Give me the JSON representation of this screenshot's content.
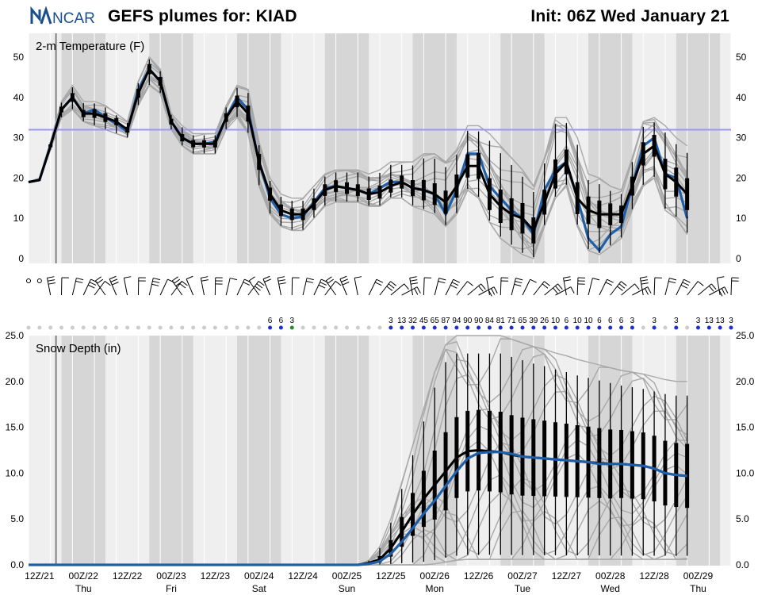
{
  "header": {
    "logo_text": "NCAR",
    "title": "GEFS plumes for: KIAD",
    "init": "Init: 06Z Wed January 21"
  },
  "colors": {
    "mean_line": "#1f5fa8",
    "median": "#000000",
    "members": "#a8a8a8",
    "freezing_line": "#9999ee",
    "shade_dark": "#d6d6d6",
    "shade_light": "#efefef",
    "prob_blue": "#1f2fd0",
    "prob_green": "#2a8a2a",
    "prob_gray": "#cccccc"
  },
  "chart_data": [
    {
      "type": "line",
      "title": "2-m Temperature (F)",
      "ylim": [
        0,
        50
      ],
      "yticks": [
        "0",
        "10",
        "20",
        "30",
        "40",
        "50"
      ],
      "freezing_line": 32,
      "x_tick_labels": [
        {
          "top": "12Z/21",
          "bottom": ""
        },
        {
          "top": "00Z/22",
          "bottom": "Thu"
        },
        {
          "top": "12Z/22",
          "bottom": ""
        },
        {
          "top": "00Z/23",
          "bottom": "Fri"
        },
        {
          "top": "12Z/23",
          "bottom": ""
        },
        {
          "top": "00Z/24",
          "bottom": "Sat"
        },
        {
          "top": "12Z/24",
          "bottom": ""
        },
        {
          "top": "00Z/25",
          "bottom": "Sun"
        },
        {
          "top": "12Z/25",
          "bottom": ""
        },
        {
          "top": "00Z/26",
          "bottom": "Mon"
        },
        {
          "top": "12Z/26",
          "bottom": ""
        },
        {
          "top": "00Z/27",
          "bottom": "Tue"
        },
        {
          "top": "12Z/27",
          "bottom": ""
        },
        {
          "top": "00Z/28",
          "bottom": "Wed"
        },
        {
          "top": "12Z/28",
          "bottom": ""
        },
        {
          "top": "00Z/29",
          "bottom": "Thu"
        }
      ],
      "series": [
        {
          "name": "ensemble mean",
          "values": [
            19,
            19.5,
            28,
            37,
            40,
            36,
            37,
            35,
            33.5,
            31.5,
            42,
            47,
            44,
            34,
            30,
            28.5,
            28.5,
            29,
            35,
            40,
            37,
            24,
            15,
            11,
            10,
            10.5,
            14,
            17.5,
            18,
            17.5,
            17,
            16,
            17.5,
            19,
            19,
            17.5,
            17,
            16,
            11,
            17,
            26,
            26,
            18,
            15,
            12,
            10,
            6,
            17,
            22,
            24,
            15,
            5,
            2,
            6,
            8,
            18,
            28,
            30,
            21,
            20,
            10
          ]
        },
        {
          "name": "median",
          "values": [
            19,
            19.5,
            28,
            37,
            40,
            36,
            36,
            35,
            34,
            32,
            41,
            47,
            44,
            34,
            30,
            28.5,
            28.5,
            28.5,
            35,
            39,
            36,
            24,
            16,
            12,
            11,
            11,
            13.5,
            17,
            18,
            17.5,
            17,
            16,
            16.5,
            18,
            19,
            17.5,
            17,
            16,
            14,
            18,
            23,
            23,
            16,
            13,
            11,
            10,
            7,
            14,
            21,
            24,
            15,
            12,
            11,
            11,
            11,
            18,
            26,
            28,
            21,
            19,
            16
          ]
        },
        {
          "name": "member low envelope",
          "values": [
            19,
            19.5,
            27,
            35,
            37,
            34,
            33,
            32,
            31,
            30,
            38,
            43,
            41,
            32,
            28,
            26,
            26,
            26,
            32,
            35,
            31,
            18,
            11,
            8,
            7,
            7,
            10,
            13,
            14,
            14,
            14,
            13,
            13,
            15,
            15,
            13,
            12,
            11,
            8,
            11,
            17,
            15,
            9,
            5,
            3,
            1,
            0,
            8,
            15,
            18,
            8,
            2,
            1,
            3,
            5,
            12,
            18,
            20,
            12,
            10,
            6
          ]
        },
        {
          "name": "member high envelope",
          "values": [
            19,
            20,
            29,
            39,
            43,
            39,
            39,
            38,
            36,
            34,
            44,
            50,
            47,
            36,
            33,
            31,
            31,
            31,
            38,
            43,
            42,
            29,
            20,
            16,
            15,
            15,
            18,
            21,
            22,
            22,
            22,
            21,
            22,
            24,
            24,
            24,
            26,
            26,
            24,
            27,
            33,
            33,
            31,
            28,
            25,
            22,
            18,
            25,
            35,
            35,
            30,
            21,
            20,
            18,
            17,
            25,
            34,
            35,
            33,
            30,
            28
          ]
        }
      ],
      "wind_barbs": "plotted per 6-h step between panels"
    },
    {
      "type": "line",
      "title": "Snow Depth (in)",
      "ylim": [
        0,
        25
      ],
      "yticks": [
        "0.0",
        "5.0",
        "10.0",
        "15.0",
        "20.0",
        "25.0"
      ],
      "x_tick_labels": "same as temperature panel",
      "series": [
        {
          "name": "ensemble mean",
          "values": [
            0,
            0,
            0,
            0,
            0,
            0,
            0,
            0,
            0,
            0,
            0,
            0,
            0,
            0,
            0,
            0,
            0,
            0,
            0,
            0,
            0,
            0,
            0,
            0,
            0,
            0,
            0,
            0,
            0,
            0,
            0,
            0.1,
            0.4,
            1.2,
            2.5,
            4,
            5.6,
            7,
            8.6,
            10.2,
            11.6,
            12.2,
            12.3,
            12.3,
            12.1,
            11.8,
            11.7,
            11.6,
            11.5,
            11.4,
            11.3,
            11.2,
            11,
            11,
            11,
            10.9,
            10.8,
            10.5,
            10,
            9.8,
            9.7
          ]
        },
        {
          "name": "median",
          "values": [
            0,
            0,
            0,
            0,
            0,
            0,
            0,
            0,
            0,
            0,
            0,
            0,
            0,
            0,
            0,
            0,
            0,
            0,
            0,
            0,
            0,
            0,
            0,
            0,
            0,
            0,
            0,
            0,
            0,
            0,
            0,
            0.2,
            0.6,
            1.8,
            3.6,
            5.5,
            7.2,
            8.7,
            10.2,
            11.7,
            12.4,
            12.5,
            12.4,
            12.3,
            12,
            11.8,
            11.7,
            11.6,
            11.5,
            11.4,
            11.3,
            11.2,
            11.1,
            11,
            11,
            10.9,
            10.8,
            10.5,
            10,
            9.8,
            9.7
          ]
        },
        {
          "name": "member high envelope",
          "values": [
            0,
            0,
            0,
            0,
            0,
            0,
            0,
            0,
            0,
            0,
            0,
            0,
            0,
            0,
            0,
            0,
            0,
            0,
            0,
            0,
            0,
            0,
            0,
            0,
            0,
            0,
            0,
            0,
            0,
            0,
            0,
            0.5,
            2,
            5,
            9,
            13,
            17,
            21,
            24,
            25,
            25,
            25,
            25,
            25,
            24.6,
            24.2,
            23.8,
            23.5,
            23.1,
            22.8,
            22.4,
            22.1,
            21.8,
            21.5,
            21.2,
            21,
            20.8,
            20.5,
            20.2,
            20,
            20
          ]
        },
        {
          "name": "member low envelope",
          "values": [
            0,
            0,
            0,
            0,
            0,
            0,
            0,
            0,
            0,
            0,
            0,
            0,
            0,
            0,
            0,
            0,
            0,
            0,
            0,
            0,
            0,
            0,
            0,
            0,
            0,
            0,
            0,
            0,
            0,
            0,
            0,
            0,
            0,
            0,
            0,
            0,
            0,
            0.1,
            0.3,
            0.5,
            0.6,
            0.6,
            0.6,
            0.6,
            0.6,
            0.6,
            0.6,
            0.6,
            0.6,
            0.6,
            0.6,
            0.6,
            0.6,
            0.6,
            0.6,
            0.6,
            0.6,
            0.6,
            0.6,
            0.6,
            0.6
          ]
        }
      ]
    }
  ],
  "snow_probability": {
    "label_values": [
      {
        "step": 22,
        "text": "6",
        "color": "blue"
      },
      {
        "step": 23,
        "text": "6",
        "color": "blue"
      },
      {
        "step": 24,
        "text": "3",
        "color": "green"
      },
      {
        "step": 33,
        "text": "3",
        "color": "blue"
      },
      {
        "step": 34,
        "text": "13",
        "color": "blue"
      },
      {
        "step": 35,
        "text": "32",
        "color": "blue"
      },
      {
        "step": 36,
        "text": "45",
        "color": "blue"
      },
      {
        "step": 37,
        "text": "65",
        "color": "blue"
      },
      {
        "step": 38,
        "text": "87",
        "color": "blue"
      },
      {
        "step": 39,
        "text": "94",
        "color": "blue"
      },
      {
        "step": 40,
        "text": "90",
        "color": "blue"
      },
      {
        "step": 41,
        "text": "90",
        "color": "blue"
      },
      {
        "step": 42,
        "text": "84",
        "color": "blue"
      },
      {
        "step": 43,
        "text": "81",
        "color": "blue"
      },
      {
        "step": 44,
        "text": "71",
        "color": "blue"
      },
      {
        "step": 45,
        "text": "65",
        "color": "blue"
      },
      {
        "step": 46,
        "text": "39",
        "color": "blue"
      },
      {
        "step": 47,
        "text": "26",
        "color": "blue"
      },
      {
        "step": 48,
        "text": "10",
        "color": "blue"
      },
      {
        "step": 49,
        "text": "6",
        "color": "blue"
      },
      {
        "step": 50,
        "text": "10",
        "color": "blue"
      },
      {
        "step": 51,
        "text": "10",
        "color": "blue"
      },
      {
        "step": 52,
        "text": "6",
        "color": "blue"
      },
      {
        "step": 53,
        "text": "6",
        "color": "blue"
      },
      {
        "step": 54,
        "text": "6",
        "color": "blue"
      },
      {
        "step": 55,
        "text": "3",
        "color": "blue"
      },
      {
        "step": 57,
        "text": "3",
        "color": "blue"
      },
      {
        "step": 59,
        "text": "3",
        "color": "blue"
      },
      {
        "step": 61,
        "text": "3",
        "color": "blue"
      },
      {
        "step": 62,
        "text": "13",
        "color": "blue"
      },
      {
        "step": 63,
        "text": "13",
        "color": "blue"
      },
      {
        "step": 64,
        "text": "3",
        "color": "blue"
      }
    ]
  }
}
